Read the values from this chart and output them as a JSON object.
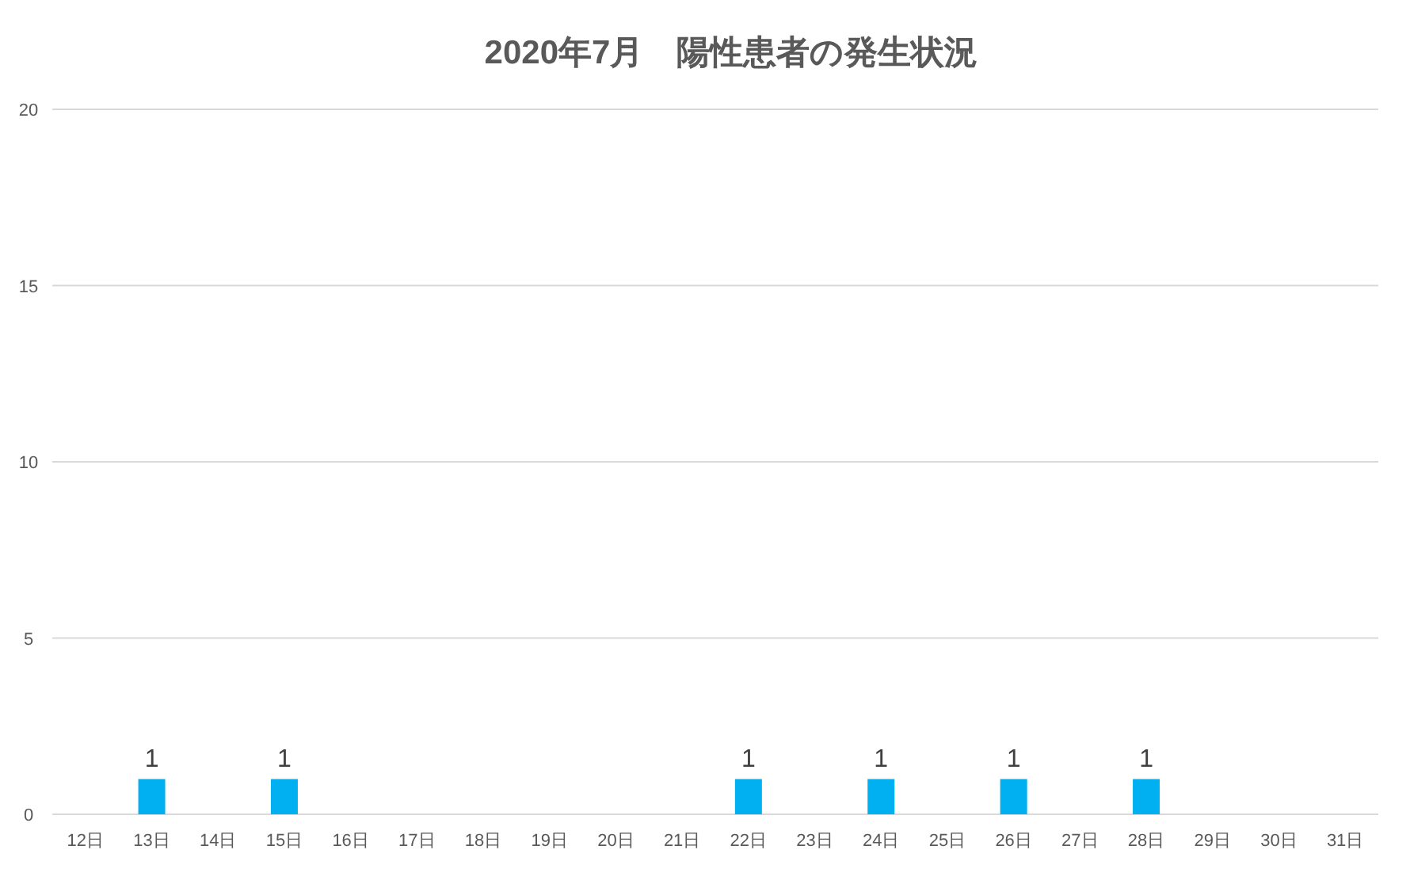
{
  "chart_data": {
    "type": "bar",
    "title": "2020年7月　陽性患者の発生状況",
    "categories": [
      "12日",
      "13日",
      "14日",
      "15日",
      "16日",
      "17日",
      "18日",
      "19日",
      "20日",
      "21日",
      "22日",
      "23日",
      "24日",
      "25日",
      "26日",
      "27日",
      "28日",
      "29日",
      "30日",
      "31日"
    ],
    "values": [
      0,
      1,
      0,
      1,
      0,
      0,
      0,
      0,
      0,
      0,
      1,
      0,
      1,
      0,
      1,
      0,
      1,
      0,
      0,
      0
    ],
    "value_labels": [
      null,
      "1",
      null,
      "1",
      null,
      null,
      null,
      null,
      null,
      null,
      "1",
      null,
      "1",
      null,
      "1",
      null,
      "1",
      null,
      null,
      null
    ],
    "color": "#00b0f0",
    "ylim": [
      0,
      20
    ],
    "yticks": [
      0,
      5,
      10,
      15,
      20
    ],
    "grid": "y"
  }
}
